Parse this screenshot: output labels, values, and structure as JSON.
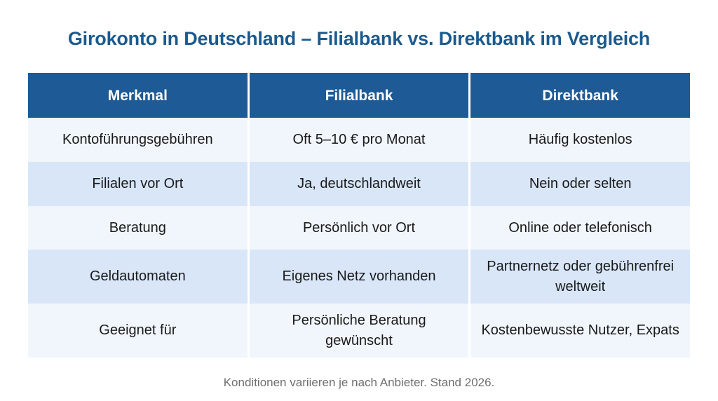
{
  "page": {
    "title": "Girokonto in Deutschland – Filialbank vs. Direktbank im Vergleich",
    "footnote": "Konditionen variieren je nach Anbieter. Stand 2026."
  },
  "colors": {
    "page_bg": "#ffffff",
    "title": "#1b5a8e",
    "header_bg": "#1d5a96",
    "header_text": "#ffffff",
    "row_light": "#f1f6fc",
    "row_shaded": "#d8e6f8",
    "body_text": "#1a1a1a",
    "footnote_text": "#6e6e6e"
  },
  "table": {
    "headers": [
      "Merkmal",
      "Filialbank",
      "Direktbank"
    ],
    "rows": [
      {
        "merkmal": "Kontoführungsgebühren",
        "filialbank": "Oft 5–10 € pro Monat",
        "direktbank": "Häufig kostenlos"
      },
      {
        "merkmal": "Filialen vor Ort",
        "filialbank": "Ja, deutschlandweit",
        "direktbank": "Nein oder selten"
      },
      {
        "merkmal": "Beratung",
        "filialbank": "Persönlich vor Ort",
        "direktbank": "Online oder telefonisch"
      },
      {
        "merkmal": "Geldautomaten",
        "filialbank": "Eigenes Netz vorhanden",
        "direktbank": "Partnernetz oder gebührenfrei weltweit"
      },
      {
        "merkmal": "Geeignet für",
        "filialbank": "Persönliche Beratung gewünscht",
        "direktbank": "Kostenbewusste Nutzer, Expats"
      }
    ]
  },
  "chart_data": {
    "type": "table",
    "title": "Girokonto in Deutschland – Filialbank vs. Direktbank im Vergleich",
    "columns": [
      "Merkmal",
      "Filialbank",
      "Direktbank"
    ],
    "rows": [
      [
        "Kontoführungsgebühren",
        "Oft 5–10 € pro Monat",
        "Häufig kostenlos"
      ],
      [
        "Filialen vor Ort",
        "Ja, deutschlandweit",
        "Nein oder selten"
      ],
      [
        "Beratung",
        "Persönlich vor Ort",
        "Online oder telefonisch"
      ],
      [
        "Geldautomaten",
        "Eigenes Netz vorhanden",
        "Partnernetz oder gebührenfrei weltweit"
      ],
      [
        "Geeignet für",
        "Persönliche Beratung gewünscht",
        "Kostenbewusste Nutzer, Expats"
      ]
    ],
    "annotations": [
      "Konditionen variieren je nach Anbieter. Stand 2026."
    ],
    "layout": {
      "header_style": "dark-blue-band",
      "body_style": "alternating light / shaded rows",
      "alignment": "center"
    }
  }
}
